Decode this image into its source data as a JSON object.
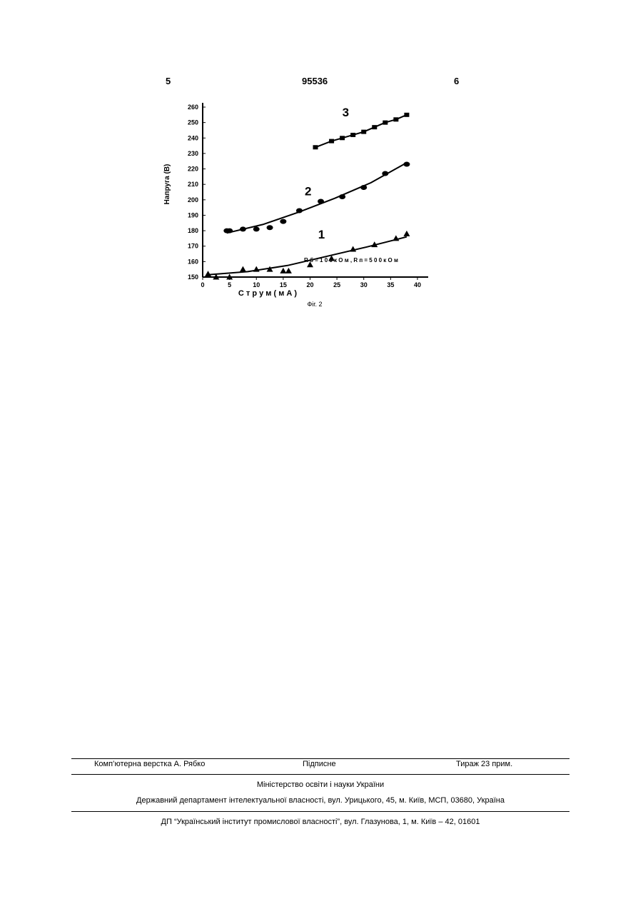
{
  "header": {
    "page_left": "5",
    "patent_number": "95536",
    "page_right": "6"
  },
  "figure_caption": "Фіг. 2",
  "chart_data": {
    "type": "scatter",
    "xlabel": "С т р у м  ( м А )",
    "ylabel": "Напруга (В)",
    "xlim": [
      0,
      42
    ],
    "ylim": [
      150,
      260
    ],
    "xticks": [
      0,
      5,
      10,
      15,
      20,
      25,
      30,
      35,
      40
    ],
    "yticks": [
      150,
      160,
      170,
      180,
      190,
      200,
      210,
      220,
      230,
      240,
      250,
      260
    ],
    "annotation": "R б  =  1 0 0  к О м ,  R п  =  5 0 0  к О м",
    "series": [
      {
        "name": "1",
        "marker": "triangle",
        "x": [
          1,
          2.5,
          5,
          7.5,
          10,
          12.5,
          15,
          16,
          20,
          24,
          28,
          32,
          36,
          38
        ],
        "y": [
          152,
          150,
          150,
          155,
          155,
          155,
          154,
          154,
          158,
          162,
          168,
          171,
          175,
          178
        ],
        "fit_y": [
          151.5,
          153.5,
          157.5,
          163.5,
          169.5,
          176
        ]
      },
      {
        "name": "2",
        "marker": "circle",
        "x": [
          4.5,
          5,
          7.5,
          10,
          12.5,
          15,
          18,
          22,
          26,
          30,
          34,
          38
        ],
        "y": [
          180,
          180,
          181,
          181,
          182,
          186,
          193,
          199,
          202,
          208,
          217,
          223
        ],
        "fit_y": [
          178.5,
          184,
          192,
          201,
          211,
          224
        ]
      },
      {
        "name": "3",
        "marker": "square",
        "x": [
          21,
          24,
          26,
          28,
          30,
          32,
          34,
          36,
          38
        ],
        "y": [
          234,
          238,
          240,
          242,
          244,
          247,
          250,
          252,
          255
        ]
      }
    ]
  },
  "footer": {
    "typesetting": "Комп’ютерна верстка А. Рябко",
    "subscription": "Підписне",
    "circulation": "Тираж 23 прим.",
    "ministry": "Міністерство освіти і науки України",
    "department": "Державний департамент інтелектуальної власності, вул. Урицького, 45, м. Київ, МСП, 03680, Україна",
    "institute": "ДП “Український інститут промислової власності”, вул. Глазунова, 1, м. Київ – 42, 01601"
  }
}
